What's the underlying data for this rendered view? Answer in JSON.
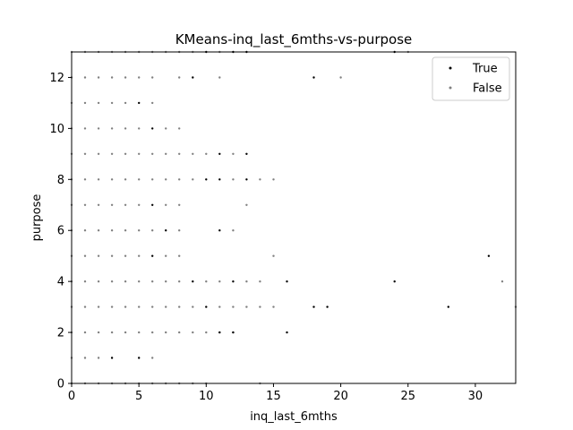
{
  "chart_data": {
    "type": "scatter",
    "title": "KMeans-inq_last_6mths-vs-purpose",
    "xlabel": "inq_last_6mths",
    "ylabel": "purpose",
    "xlim": [
      0,
      33
    ],
    "ylim": [
      0,
      13
    ],
    "xticks": [
      0,
      5,
      10,
      15,
      20,
      25,
      30
    ],
    "yticks": [
      0,
      2,
      4,
      6,
      8,
      10,
      12
    ],
    "grid": false,
    "legend_position": "top-right",
    "series": [
      {
        "name": "False",
        "color": "#808080",
        "points": [
          [
            0,
            0
          ],
          [
            1,
            0
          ],
          [
            2,
            0
          ],
          [
            3,
            0
          ],
          [
            4,
            0
          ],
          [
            5,
            0
          ],
          [
            6,
            0
          ],
          [
            7,
            0
          ],
          [
            8,
            0
          ],
          [
            9,
            0
          ],
          [
            10,
            0
          ],
          [
            14,
            0
          ],
          [
            0,
            1
          ],
          [
            1,
            1
          ],
          [
            2,
            1
          ],
          [
            6,
            1
          ],
          [
            0,
            2
          ],
          [
            1,
            2
          ],
          [
            2,
            2
          ],
          [
            3,
            2
          ],
          [
            4,
            2
          ],
          [
            5,
            2
          ],
          [
            6,
            2
          ],
          [
            7,
            2
          ],
          [
            8,
            2
          ],
          [
            9,
            2
          ],
          [
            10,
            2
          ],
          [
            11,
            2
          ],
          [
            12,
            2
          ],
          [
            0,
            3
          ],
          [
            1,
            3
          ],
          [
            2,
            3
          ],
          [
            3,
            3
          ],
          [
            4,
            3
          ],
          [
            5,
            3
          ],
          [
            6,
            3
          ],
          [
            7,
            3
          ],
          [
            8,
            3
          ],
          [
            9,
            3
          ],
          [
            11,
            3
          ],
          [
            12,
            3
          ],
          [
            13,
            3
          ],
          [
            14,
            3
          ],
          [
            15,
            3
          ],
          [
            33,
            3
          ],
          [
            0,
            4
          ],
          [
            1,
            4
          ],
          [
            2,
            4
          ],
          [
            3,
            4
          ],
          [
            4,
            4
          ],
          [
            5,
            4
          ],
          [
            6,
            4
          ],
          [
            7,
            4
          ],
          [
            8,
            4
          ],
          [
            10,
            4
          ],
          [
            11,
            4
          ],
          [
            13,
            4
          ],
          [
            14,
            4
          ],
          [
            32,
            4
          ],
          [
            0,
            5
          ],
          [
            1,
            5
          ],
          [
            2,
            5
          ],
          [
            3,
            5
          ],
          [
            4,
            5
          ],
          [
            5,
            5
          ],
          [
            7,
            5
          ],
          [
            8,
            5
          ],
          [
            15,
            5
          ],
          [
            0,
            6
          ],
          [
            1,
            6
          ],
          [
            2,
            6
          ],
          [
            3,
            6
          ],
          [
            4,
            6
          ],
          [
            5,
            6
          ],
          [
            6,
            6
          ],
          [
            8,
            6
          ],
          [
            12,
            6
          ],
          [
            0,
            7
          ],
          [
            1,
            7
          ],
          [
            2,
            7
          ],
          [
            3,
            7
          ],
          [
            4,
            7
          ],
          [
            5,
            7
          ],
          [
            7,
            7
          ],
          [
            8,
            7
          ],
          [
            13,
            7
          ],
          [
            0,
            8
          ],
          [
            1,
            8
          ],
          [
            2,
            8
          ],
          [
            3,
            8
          ],
          [
            4,
            8
          ],
          [
            5,
            8
          ],
          [
            6,
            8
          ],
          [
            7,
            8
          ],
          [
            8,
            8
          ],
          [
            9,
            8
          ],
          [
            12,
            8
          ],
          [
            14,
            8
          ],
          [
            15,
            8
          ],
          [
            0,
            9
          ],
          [
            1,
            9
          ],
          [
            2,
            9
          ],
          [
            3,
            9
          ],
          [
            4,
            9
          ],
          [
            5,
            9
          ],
          [
            6,
            9
          ],
          [
            7,
            9
          ],
          [
            8,
            9
          ],
          [
            9,
            9
          ],
          [
            10,
            9
          ],
          [
            12,
            9
          ],
          [
            0,
            10
          ],
          [
            1,
            10
          ],
          [
            2,
            10
          ],
          [
            3,
            10
          ],
          [
            4,
            10
          ],
          [
            5,
            10
          ],
          [
            7,
            10
          ],
          [
            8,
            10
          ],
          [
            0,
            11
          ],
          [
            1,
            11
          ],
          [
            2,
            11
          ],
          [
            3,
            11
          ],
          [
            4,
            11
          ],
          [
            6,
            11
          ],
          [
            0,
            12
          ],
          [
            1,
            12
          ],
          [
            2,
            12
          ],
          [
            3,
            12
          ],
          [
            4,
            12
          ],
          [
            5,
            12
          ],
          [
            6,
            12
          ],
          [
            8,
            12
          ],
          [
            11,
            12
          ],
          [
            20,
            12
          ],
          [
            0,
            13
          ],
          [
            1,
            13
          ],
          [
            2,
            13
          ],
          [
            3,
            13
          ],
          [
            4,
            13
          ],
          [
            5,
            13
          ],
          [
            6,
            13
          ],
          [
            7,
            13
          ],
          [
            8,
            13
          ],
          [
            9,
            13
          ],
          [
            11,
            13
          ],
          [
            25,
            13
          ]
        ]
      },
      {
        "name": "True",
        "color": "#000000",
        "points": [
          [
            3,
            1
          ],
          [
            5,
            1
          ],
          [
            11,
            2
          ],
          [
            12,
            2
          ],
          [
            16,
            2
          ],
          [
            10,
            3
          ],
          [
            18,
            3
          ],
          [
            19,
            3
          ],
          [
            28,
            3
          ],
          [
            9,
            4
          ],
          [
            12,
            4
          ],
          [
            16,
            4
          ],
          [
            24,
            4
          ],
          [
            6,
            5
          ],
          [
            31,
            5
          ],
          [
            7,
            6
          ],
          [
            11,
            6
          ],
          [
            6,
            7
          ],
          [
            10,
            8
          ],
          [
            11,
            8
          ],
          [
            13,
            8
          ],
          [
            11,
            9
          ],
          [
            13,
            9
          ],
          [
            6,
            10
          ],
          [
            5,
            11
          ],
          [
            9,
            12
          ],
          [
            18,
            12
          ],
          [
            10,
            13
          ],
          [
            12,
            13
          ],
          [
            13,
            13
          ],
          [
            24,
            13
          ]
        ]
      }
    ],
    "legend": [
      {
        "label": "True",
        "color": "#000000"
      },
      {
        "label": "False",
        "color": "#808080"
      }
    ]
  }
}
